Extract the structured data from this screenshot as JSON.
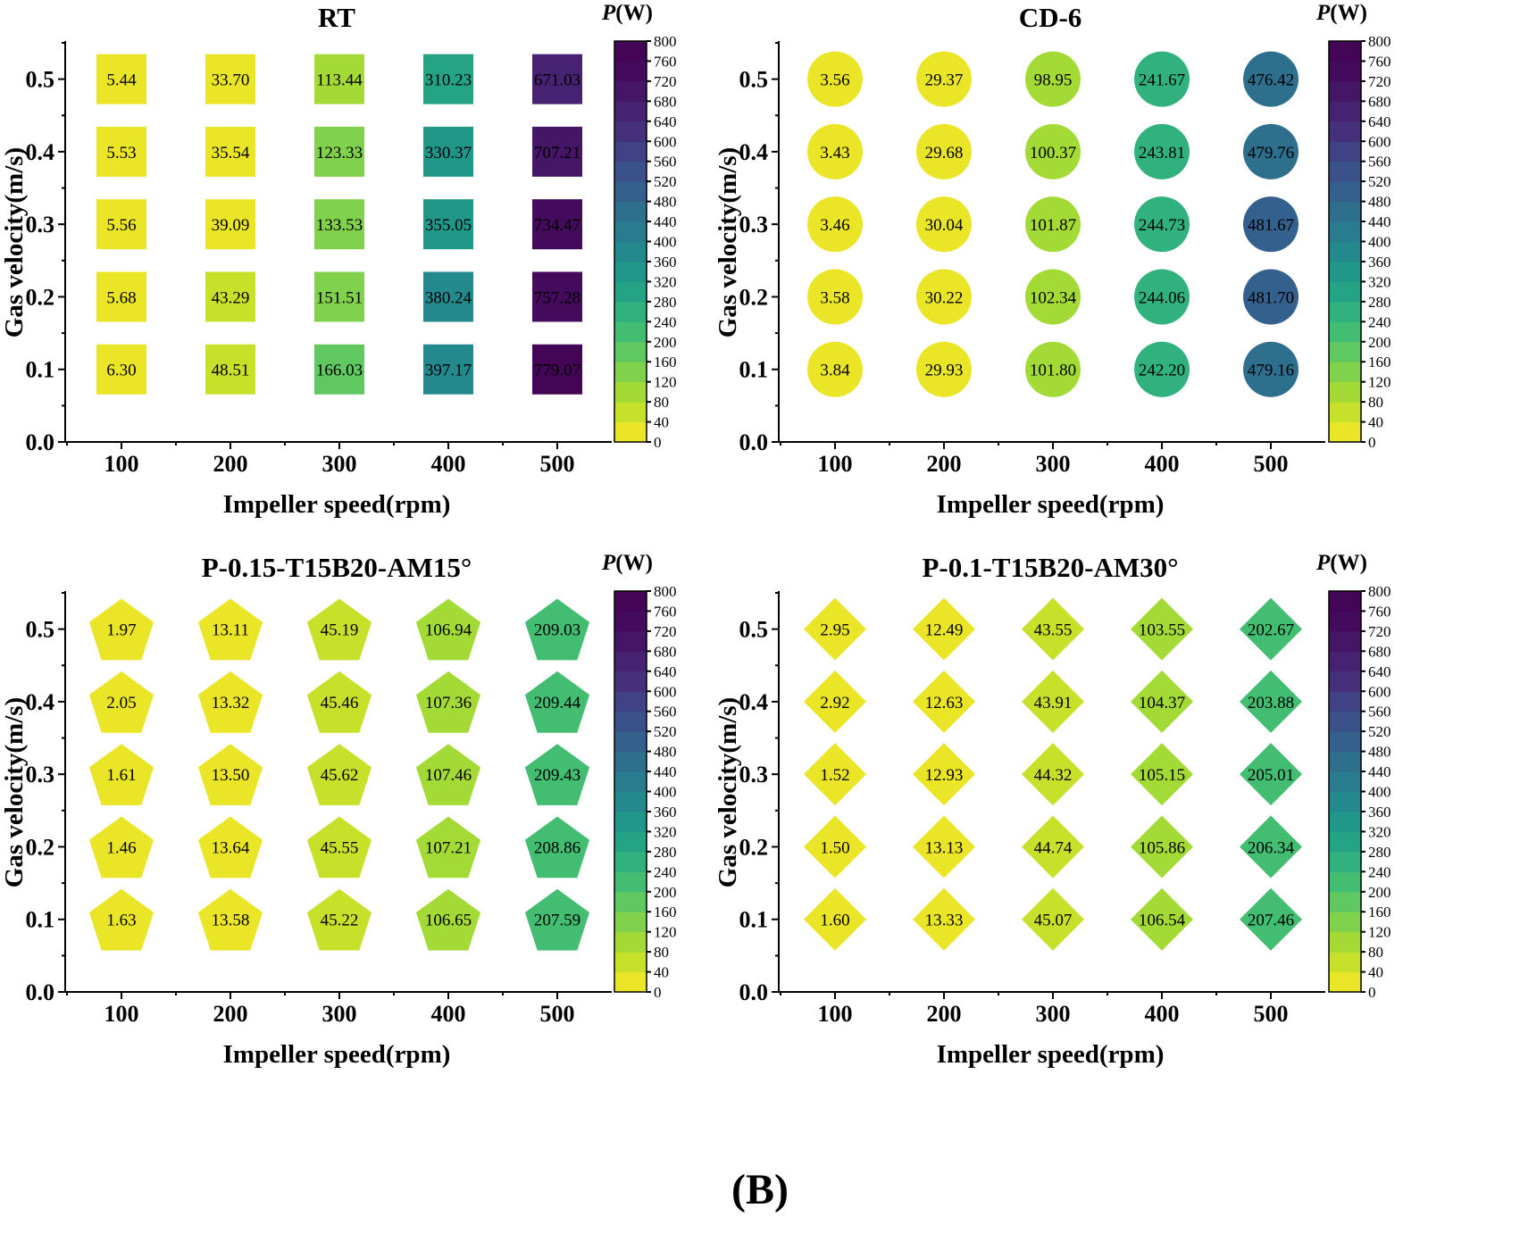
{
  "figure_label": "(B)",
  "colorscale": {
    "title_symbol": "P",
    "title_unit": "(W)",
    "min": 0,
    "max": 800,
    "step": 40,
    "ticks": [
      "0",
      "40",
      "80",
      "120",
      "160",
      "200",
      "240",
      "280",
      "320",
      "360",
      "400",
      "440",
      "480",
      "520",
      "560",
      "600",
      "640",
      "680",
      "720",
      "760",
      "800"
    ],
    "stops": [
      {
        "v": 0.0,
        "c": "#fde725"
      },
      {
        "v": 0.1,
        "c": "#b5de2b"
      },
      {
        "v": 0.2,
        "c": "#6ece58"
      },
      {
        "v": 0.3,
        "c": "#35b779"
      },
      {
        "v": 0.4,
        "c": "#1f9e89"
      },
      {
        "v": 0.5,
        "c": "#26828e"
      },
      {
        "v": 0.6,
        "c": "#31688e"
      },
      {
        "v": 0.7,
        "c": "#3e4989"
      },
      {
        "v": 0.8,
        "c": "#482878"
      },
      {
        "v": 0.9,
        "c": "#440f60"
      },
      {
        "v": 1.0,
        "c": "#440154"
      }
    ]
  },
  "chart_data": [
    {
      "type": "heatmap",
      "title": "RT",
      "marker": "square",
      "xlabel": "Impeller speed(rpm)",
      "ylabel": "Gas velocity(m/s)",
      "x": [
        100,
        200,
        300,
        400,
        500
      ],
      "x_ticks": [
        "100",
        "200",
        "300",
        "400",
        "500"
      ],
      "y": [
        0.5,
        0.4,
        0.3,
        0.2,
        0.1
      ],
      "y_ticks": [
        "0.0",
        "0.1",
        "0.2",
        "0.3",
        "0.4",
        "0.5"
      ],
      "ylim": [
        0,
        0.55
      ],
      "values": [
        [
          "5.44",
          "33.70",
          "113.44",
          "310.23",
          "671.03"
        ],
        [
          "5.53",
          "35.54",
          "123.33",
          "330.37",
          "707.21"
        ],
        [
          "5.56",
          "39.09",
          "133.53",
          "355.05",
          "734.47"
        ],
        [
          "5.68",
          "43.29",
          "151.51",
          "380.24",
          "757.28"
        ],
        [
          "6.30",
          "48.51",
          "166.03",
          "397.17",
          "779.07"
        ]
      ]
    },
    {
      "type": "heatmap",
      "title": "CD-6",
      "marker": "circle",
      "xlabel": "Impeller speed(rpm)",
      "ylabel": "Gas velocity(m/s)",
      "x": [
        100,
        200,
        300,
        400,
        500
      ],
      "x_ticks": [
        "100",
        "200",
        "300",
        "400",
        "500"
      ],
      "y": [
        0.5,
        0.4,
        0.3,
        0.2,
        0.1
      ],
      "y_ticks": [
        "0.0",
        "0.1",
        "0.2",
        "0.3",
        "0.4",
        "0.5"
      ],
      "ylim": [
        0,
        0.55
      ],
      "values": [
        [
          "3.56",
          "29.37",
          "98.95",
          "241.67",
          "476.42"
        ],
        [
          "3.43",
          "29.68",
          "100.37",
          "243.81",
          "479.76"
        ],
        [
          "3.46",
          "30.04",
          "101.87",
          "244.73",
          "481.67"
        ],
        [
          "3.58",
          "30.22",
          "102.34",
          "244.06",
          "481.70"
        ],
        [
          "3.84",
          "29.93",
          "101.80",
          "242.20",
          "479.16"
        ]
      ]
    },
    {
      "type": "heatmap",
      "title": "P-0.15-T15B20-AM15°",
      "marker": "pentagon",
      "xlabel": "Impeller speed(rpm)",
      "ylabel": "Gas velocity(m/s)",
      "x": [
        100,
        200,
        300,
        400,
        500
      ],
      "x_ticks": [
        "100",
        "200",
        "300",
        "400",
        "500"
      ],
      "y": [
        0.5,
        0.4,
        0.3,
        0.2,
        0.1
      ],
      "y_ticks": [
        "0.0",
        "0.1",
        "0.2",
        "0.3",
        "0.4",
        "0.5"
      ],
      "ylim": [
        0,
        0.55
      ],
      "values": [
        [
          "1.97",
          "13.11",
          "45.19",
          "106.94",
          "209.03"
        ],
        [
          "2.05",
          "13.32",
          "45.46",
          "107.36",
          "209.44"
        ],
        [
          "1.61",
          "13.50",
          "45.62",
          "107.46",
          "209.43"
        ],
        [
          "1.46",
          "13.64",
          "45.55",
          "107.21",
          "208.86"
        ],
        [
          "1.63",
          "13.58",
          "45.22",
          "106.65",
          "207.59"
        ]
      ]
    },
    {
      "type": "heatmap",
      "title": "P-0.1-T15B20-AM30°",
      "marker": "diamond",
      "xlabel": "Impeller speed(rpm)",
      "ylabel": "Gas velocity(m/s)",
      "x": [
        100,
        200,
        300,
        400,
        500
      ],
      "x_ticks": [
        "100",
        "200",
        "300",
        "400",
        "500"
      ],
      "y": [
        0.5,
        0.4,
        0.3,
        0.2,
        0.1
      ],
      "y_ticks": [
        "0.0",
        "0.1",
        "0.2",
        "0.3",
        "0.4",
        "0.5"
      ],
      "ylim": [
        0,
        0.55
      ],
      "values": [
        [
          "2.95",
          "12.49",
          "43.55",
          "103.55",
          "202.67"
        ],
        [
          "2.92",
          "12.63",
          "43.91",
          "104.37",
          "203.88"
        ],
        [
          "1.52",
          "12.93",
          "44.32",
          "105.15",
          "205.01"
        ],
        [
          "1.50",
          "13.13",
          "44.74",
          "105.86",
          "206.34"
        ],
        [
          "1.60",
          "13.33",
          "45.07",
          "106.54",
          "207.46"
        ]
      ]
    }
  ]
}
